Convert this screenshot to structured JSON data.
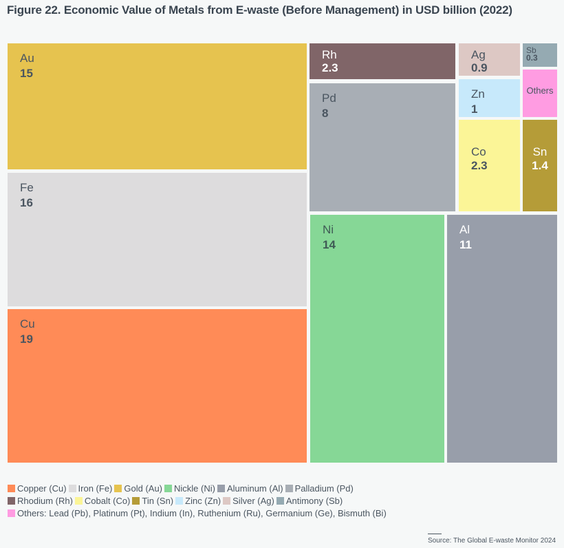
{
  "title": "Figure 22. Economic Value of Metals from E-waste (Before Management) in USD billion (2022)",
  "source": "Source: The Global E-waste Monitor 2024",
  "chart_data": {
    "type": "treemap",
    "title": "Figure 22. Economic Value of Metals from E-waste (Before Management) in USD billion (2022)",
    "unit": "USD billion",
    "items": [
      {
        "symbol": "Au",
        "name": "Gold",
        "value": 15,
        "label": "15",
        "color": "#e6c34f",
        "text_color": "#4a5560"
      },
      {
        "symbol": "Fe",
        "name": "Iron",
        "value": 16,
        "label": "16",
        "color": "#dddcdd",
        "text_color": "#4a5560"
      },
      {
        "symbol": "Cu",
        "name": "Copper",
        "value": 19,
        "label": "19",
        "color": "#ff8b57",
        "text_color": "#4a5560"
      },
      {
        "symbol": "Rh",
        "name": "Rhodium",
        "value": 2.3,
        "label": "2.3",
        "color": "#806568",
        "text_color": "#ffffff"
      },
      {
        "symbol": "Pd",
        "name": "Palladium",
        "value": 8,
        "label": "8",
        "color": "#a8aeb5",
        "text_color": "#4a5560"
      },
      {
        "symbol": "Ag",
        "name": "Silver",
        "value": 0.9,
        "label": "0.9",
        "color": "#ddc8c4",
        "text_color": "#4a5560"
      },
      {
        "symbol": "Sb",
        "name": "Antimony",
        "value": 0.3,
        "label": "0.3",
        "color": "#95aab2",
        "text_color": "#4a5560"
      },
      {
        "symbol": "Zn",
        "name": "Zinc",
        "value": 1,
        "label": "1",
        "color": "#c7e9fb",
        "text_color": "#4a5560"
      },
      {
        "symbol": "Others",
        "name": "Others",
        "value": null,
        "label": "",
        "color": "#ff9ce2",
        "text_color": "#4a5560"
      },
      {
        "symbol": "Co",
        "name": "Cobalt",
        "value": 2.3,
        "label": "2.3",
        "color": "#fbf597",
        "text_color": "#4a5560"
      },
      {
        "symbol": "Sn",
        "name": "Tin",
        "value": 1.4,
        "label": "1.4",
        "color": "#b59c38",
        "text_color": "#ffffff"
      },
      {
        "symbol": "Ni",
        "name": "Nickle",
        "value": 14,
        "label": "14",
        "color": "#86d796",
        "text_color": "#3f5a55"
      },
      {
        "symbol": "Al",
        "name": "Aluminum",
        "value": 11,
        "label": "11",
        "color": "#989eaa",
        "text_color": "#ffffff"
      }
    ],
    "legend": [
      [
        {
          "label": "Copper (Cu)",
          "color": "#ff8b57"
        },
        {
          "label": "Iron (Fe)",
          "color": "#dddcdd"
        },
        {
          "label": "Gold (Au)",
          "color": "#e6c34f"
        },
        {
          "label": "Nickle (Ni)",
          "color": "#86d796"
        },
        {
          "label": "Aluminum (Al)",
          "color": "#989eaa"
        },
        {
          "label": "Palladium (Pd)",
          "color": "#a8aeb5"
        }
      ],
      [
        {
          "label": "Rhodium (Rh)",
          "color": "#806568"
        },
        {
          "label": "Cobalt (Co)",
          "color": "#fbf597"
        },
        {
          "label": "Tin (Sn)",
          "color": "#b59c38"
        },
        {
          "label": "Zinc (Zn)",
          "color": "#c7e9fb"
        },
        {
          "label": "Silver (Ag)",
          "color": "#ddc8c4"
        },
        {
          "label": "Antimony (Sb)",
          "color": "#95aab2"
        }
      ],
      [
        {
          "label": "Others: Lead (Pb), Platinum (Pt), Indium (In), Ruthenium (Ru), Germanium (Ge), Bismuth (Bi)",
          "color": "#ff9ce2"
        }
      ]
    ],
    "legend_position": "bottom-left"
  }
}
